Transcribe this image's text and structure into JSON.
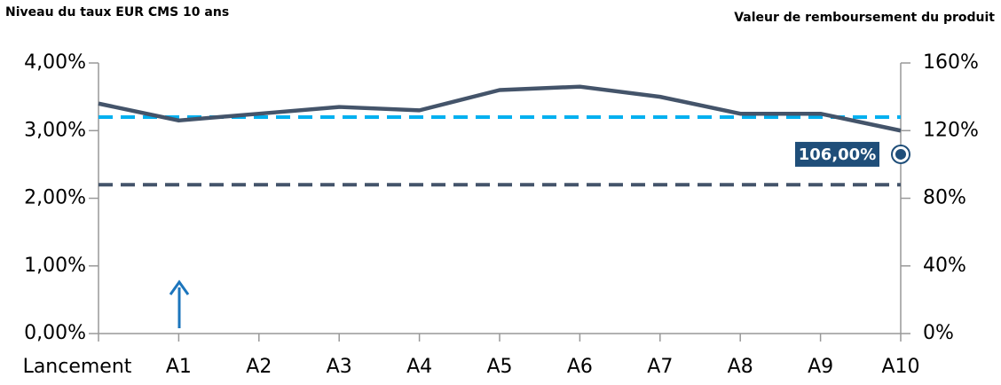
{
  "chart_data": {
    "type": "line",
    "y_axis_label": "Niveau du taux EUR CMS 10 ans",
    "y2_axis_label": "Valeur de remboursement du produit",
    "categories": [
      "Lancement",
      "A1",
      "A2",
      "A3",
      "A4",
      "A5",
      "A6",
      "A7",
      "A8",
      "A9",
      "A10"
    ],
    "series": [
      {
        "color": "#44546a",
        "values": [
          3.4,
          3.15,
          3.25,
          3.35,
          3.3,
          3.6,
          3.65,
          3.5,
          3.25,
          3.25,
          3.0
        ]
      },
      {
        "color": "#1f4e79",
        "axis": "y2",
        "marker": true,
        "values": [
          null,
          null,
          null,
          null,
          null,
          null,
          null,
          null,
          null,
          null,
          106
        ],
        "value_labels": [
          null,
          null,
          null,
          null,
          null,
          null,
          null,
          null,
          null,
          null,
          "106,00%"
        ]
      }
    ],
    "hlines": [
      {
        "value": 3.2,
        "color": "#00b0f0"
      },
      {
        "value": 2.2,
        "color": "#44546a"
      }
    ],
    "ylim": [
      0,
      4
    ],
    "yticks": [
      {
        "value": 0,
        "label": "0,00%"
      },
      {
        "value": 1,
        "label": "1,00%"
      },
      {
        "value": 2,
        "label": "2,00%"
      },
      {
        "value": 3,
        "label": "3,00%"
      },
      {
        "value": 4,
        "label": "4,00%"
      }
    ],
    "y2lim": [
      0,
      160
    ],
    "y2ticks": [
      {
        "value": 0,
        "label": "0%"
      },
      {
        "value": 40,
        "label": "40%"
      },
      {
        "value": 80,
        "label": "80%"
      },
      {
        "value": 120,
        "label": "120%"
      },
      {
        "value": 160,
        "label": "160%"
      }
    ]
  }
}
